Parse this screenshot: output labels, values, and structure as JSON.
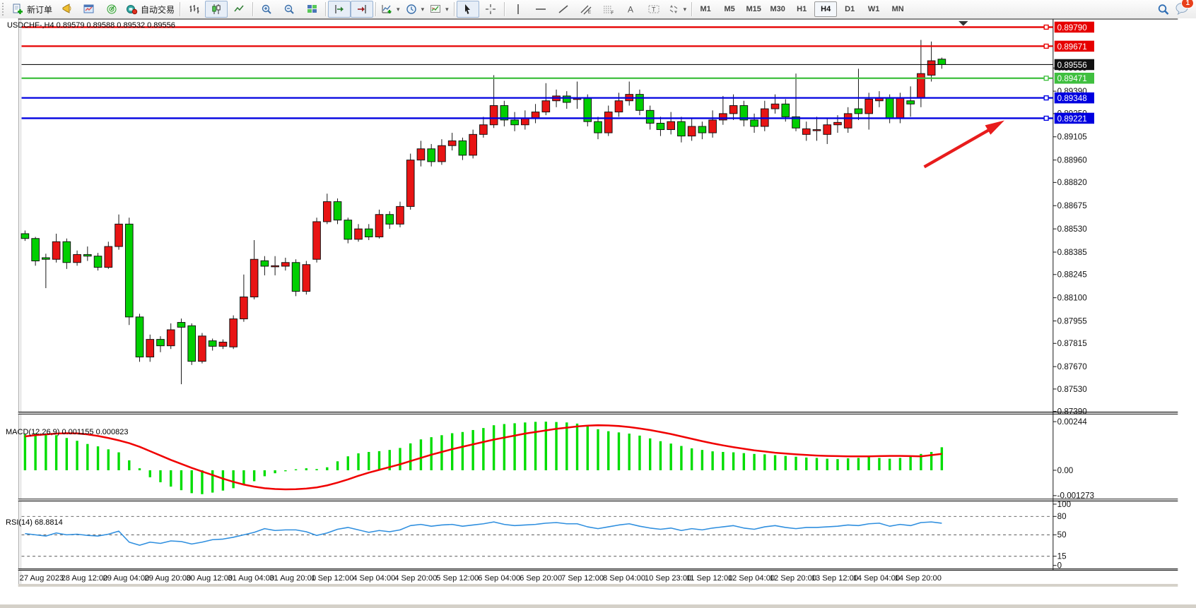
{
  "toolbar": {
    "new_order_label": "新订单",
    "autotrade_label": "自动交易",
    "timeframes": [
      "M1",
      "M5",
      "M15",
      "M30",
      "H1",
      "H4",
      "D1",
      "W1",
      "MN"
    ],
    "active_timeframe": "H4",
    "notification_count": "1"
  },
  "chart_data": {
    "type": "candlestick",
    "symbol": "USDCHF-",
    "period": "H4",
    "title": "USDCHF-,H4  0.89579 0.89588 0.89532 0.89556",
    "quote": {
      "open": "0.89579",
      "high": "0.89588",
      "low": "0.89532",
      "close": "0.89556"
    },
    "colors": {
      "bull": "#e81414",
      "bear": "#00cf00",
      "wick": "#111111",
      "macd_hist": "#00dd00",
      "macd_signal": "#f00000",
      "rsi_line": "#2f8fdf",
      "arrow": "#e81c1c",
      "axis_text": "#111111"
    },
    "levels": [
      {
        "label": "0.89790",
        "price": 0.8979,
        "color": "#e60000",
        "width": 2.4,
        "quote": false
      },
      {
        "label": "0.89671",
        "price": 0.89671,
        "color": "#e60000",
        "width": 2.4,
        "quote": false
      },
      {
        "label": "0.89556",
        "price": 0.89556,
        "color": "#111111",
        "width": 1.2,
        "quote": true
      },
      {
        "label": "0.89471",
        "price": 0.89471,
        "color": "#3fbf3f",
        "width": 2.4,
        "quote": false
      },
      {
        "label": "0.89348",
        "price": 0.89348,
        "color": "#0000e0",
        "width": 2.4,
        "quote": false
      },
      {
        "label": "0.89221",
        "price": 0.89221,
        "color": "#0000e0",
        "width": 2.4,
        "quote": false
      }
    ],
    "price_ticks": [
      "0.89535",
      "0.89390",
      "0.89250",
      "0.89105",
      "0.88960",
      "0.88820",
      "0.88675",
      "0.88530",
      "0.88385",
      "0.88245",
      "0.88100",
      "0.87955",
      "0.87815",
      "0.87670",
      "0.87530",
      "0.87390"
    ],
    "time_labels": [
      "27 Aug 2023",
      "28 Aug 12:00",
      "29 Aug 04:00",
      "29 Aug 20:00",
      "30 Aug 12:00",
      "31 Aug 04:00",
      "31 Aug 20:00",
      "1 Sep 12:00",
      "4 Sep 04:00",
      "4 Sep 20:00",
      "5 Sep 12:00",
      "6 Sep 04:00",
      "6 Sep 20:00",
      "7 Sep 12:00",
      "8 Sep 04:00",
      "10 Sep 23:00",
      "11 Sep 12:00",
      "12 Sep 04:00",
      "12 Sep 20:00",
      "13 Sep 12:00",
      "14 Sep 04:00",
      "14 Sep 20:00"
    ],
    "candles": [
      [
        0.885,
        0.8852,
        0.88455,
        0.8847
      ],
      [
        0.8847,
        0.8848,
        0.883,
        0.8833
      ],
      [
        0.8835,
        0.88375,
        0.8816,
        0.8834
      ],
      [
        0.8834,
        0.885,
        0.8832,
        0.8845
      ],
      [
        0.8845,
        0.8847,
        0.8828,
        0.8832
      ],
      [
        0.8832,
        0.88395,
        0.883,
        0.8837
      ],
      [
        0.8837,
        0.8842,
        0.8833,
        0.8836
      ],
      [
        0.8836,
        0.8838,
        0.8827,
        0.8829
      ],
      [
        0.8829,
        0.8845,
        0.8828,
        0.8842
      ],
      [
        0.8842,
        0.8862,
        0.884,
        0.8856
      ],
      [
        0.8856,
        0.886,
        0.8793,
        0.8798
      ],
      [
        0.8798,
        0.88,
        0.877,
        0.8773
      ],
      [
        0.8773,
        0.8787,
        0.877,
        0.8784
      ],
      [
        0.8784,
        0.8786,
        0.8776,
        0.878
      ],
      [
        0.878,
        0.8794,
        0.8778,
        0.879
      ],
      [
        0.87946,
        0.8797,
        0.8756,
        0.87916
      ],
      [
        0.87925,
        0.8794,
        0.8768,
        0.87703
      ],
      [
        0.87703,
        0.8788,
        0.8769,
        0.87861
      ],
      [
        0.87831,
        0.87845,
        0.8777,
        0.87797
      ],
      [
        0.87797,
        0.8784,
        0.8778,
        0.87823
      ],
      [
        0.87793,
        0.8799,
        0.8778,
        0.87968
      ],
      [
        0.87968,
        0.88245,
        0.8795,
        0.88105
      ],
      [
        0.88105,
        0.8846,
        0.8809,
        0.8834
      ],
      [
        0.88331,
        0.8836,
        0.8824,
        0.88297
      ],
      [
        0.883,
        0.8836,
        0.8824,
        0.883
      ],
      [
        0.88297,
        0.8835,
        0.8827,
        0.8832
      ],
      [
        0.8832,
        0.8834,
        0.8811,
        0.8814
      ],
      [
        0.8814,
        0.8833,
        0.8812,
        0.88307
      ],
      [
        0.8834,
        0.886,
        0.8832,
        0.88575
      ],
      [
        0.88575,
        0.8875,
        0.8856,
        0.887
      ],
      [
        0.887,
        0.8872,
        0.8856,
        0.88585
      ],
      [
        0.88585,
        0.886,
        0.8844,
        0.88465
      ],
      [
        0.88465,
        0.8856,
        0.8845,
        0.8853
      ],
      [
        0.8853,
        0.8856,
        0.8846,
        0.8848
      ],
      [
        0.8848,
        0.8865,
        0.8847,
        0.8862
      ],
      [
        0.8862,
        0.8864,
        0.8853,
        0.8856
      ],
      [
        0.8856,
        0.887,
        0.8854,
        0.8867
      ],
      [
        0.8867,
        0.89,
        0.8865,
        0.8896
      ],
      [
        0.8896,
        0.8908,
        0.8892,
        0.8903
      ],
      [
        0.8903,
        0.8906,
        0.8892,
        0.8895
      ],
      [
        0.8895,
        0.8909,
        0.8893,
        0.8905
      ],
      [
        0.8905,
        0.8913,
        0.8902,
        0.8908
      ],
      [
        0.8908,
        0.891,
        0.8896,
        0.8899
      ],
      [
        0.8899,
        0.8915,
        0.8897,
        0.8912
      ],
      [
        0.8912,
        0.8923,
        0.891,
        0.8918
      ],
      [
        0.8918,
        0.8949,
        0.8916,
        0.893
      ],
      [
        0.893,
        0.8933,
        0.8917,
        0.8921
      ],
      [
        0.8921,
        0.8926,
        0.8914,
        0.8918
      ],
      [
        0.8918,
        0.8927,
        0.8915,
        0.8922
      ],
      [
        0.8922,
        0.8931,
        0.8919,
        0.8926
      ],
      [
        0.8926,
        0.8944,
        0.8924,
        0.8933
      ],
      [
        0.8933,
        0.894,
        0.8929,
        0.8936
      ],
      [
        0.8936,
        0.8939,
        0.8928,
        0.8932
      ],
      [
        0.8934,
        0.8945,
        0.8928,
        0.89345
      ],
      [
        0.89345,
        0.8937,
        0.8917,
        0.892
      ],
      [
        0.892,
        0.8923,
        0.8909,
        0.8913
      ],
      [
        0.8913,
        0.893,
        0.8911,
        0.8926
      ],
      [
        0.8926,
        0.8938,
        0.8923,
        0.8933
      ],
      [
        0.8933,
        0.8945,
        0.893,
        0.8937
      ],
      [
        0.8937,
        0.894,
        0.8924,
        0.8927
      ],
      [
        0.8927,
        0.893,
        0.8915,
        0.8919
      ],
      [
        0.8919,
        0.8923,
        0.8911,
        0.8915
      ],
      [
        0.8915,
        0.8926,
        0.8912,
        0.892
      ],
      [
        0.892,
        0.8923,
        0.8907,
        0.8911
      ],
      [
        0.8911,
        0.8922,
        0.8908,
        0.8917
      ],
      [
        0.8917,
        0.892,
        0.8909,
        0.8913
      ],
      [
        0.8913,
        0.8927,
        0.891,
        0.8921
      ],
      [
        0.8921,
        0.8936,
        0.8918,
        0.8925
      ],
      [
        0.8925,
        0.8937,
        0.8921,
        0.893
      ],
      [
        0.893,
        0.8933,
        0.8917,
        0.8921
      ],
      [
        0.8921,
        0.8925,
        0.8913,
        0.8917
      ],
      [
        0.8917,
        0.8933,
        0.8914,
        0.8928
      ],
      [
        0.8928,
        0.8937,
        0.8925,
        0.8931
      ],
      [
        0.8931,
        0.8934,
        0.892,
        0.8923
      ],
      [
        0.8923,
        0.895,
        0.8914,
        0.8916
      ],
      [
        0.8912,
        0.892,
        0.8908,
        0.89155
      ],
      [
        0.8915,
        0.8923,
        0.8908,
        0.8915
      ],
      [
        0.8912,
        0.8922,
        0.8906,
        0.8918
      ],
      [
        0.8918,
        0.8924,
        0.8913,
        0.89195
      ],
      [
        0.8916,
        0.8929,
        0.8913,
        0.8925
      ],
      [
        0.8928,
        0.8953,
        0.8921,
        0.8925
      ],
      [
        0.8925,
        0.8938,
        0.8915,
        0.8934
      ],
      [
        0.8933,
        0.8939,
        0.8929,
        0.8935
      ],
      [
        0.8935,
        0.8937,
        0.8919,
        0.8922
      ],
      [
        0.8922,
        0.8938,
        0.8919,
        0.8935
      ],
      [
        0.8933,
        0.8942,
        0.8923,
        0.8931
      ],
      [
        0.8935,
        0.8971,
        0.8929,
        0.895
      ],
      [
        0.8949,
        0.897,
        0.8945,
        0.8958
      ],
      [
        0.8959,
        0.896,
        0.8953,
        0.89556
      ]
    ],
    "macd": {
      "label": "MACD(12,26,9) 0.001155 0.000823",
      "ticks": [
        {
          "text": "0.00244",
          "value": 2.44
        },
        {
          "text": "0.00",
          "value": 0
        },
        {
          "text": "-0.001273",
          "value": -1.273
        }
      ],
      "hist": [
        1.8,
        1.85,
        1.82,
        1.76,
        1.62,
        1.48,
        1.32,
        1.2,
        1.05,
        0.9,
        0.5,
        0.1,
        -0.35,
        -0.6,
        -0.82,
        -1.0,
        -1.15,
        -1.2,
        -1.12,
        -1.02,
        -0.9,
        -0.74,
        -0.55,
        -0.3,
        -0.15,
        -0.05,
        0.05,
        0.1,
        0.06,
        0.15,
        0.45,
        0.7,
        0.85,
        0.92,
        0.96,
        1.02,
        1.12,
        1.35,
        1.55,
        1.66,
        1.76,
        1.86,
        1.92,
        2.02,
        2.12,
        2.26,
        2.32,
        2.36,
        2.4,
        2.43,
        2.44,
        2.42,
        2.4,
        2.34,
        2.2,
        2.06,
        1.96,
        1.9,
        1.84,
        1.74,
        1.6,
        1.46,
        1.34,
        1.22,
        1.1,
        1.02,
        0.95,
        0.92,
        0.9,
        0.86,
        0.82,
        0.8,
        0.76,
        0.72,
        0.68,
        0.64,
        0.62,
        0.58,
        0.56,
        0.6,
        0.62,
        0.66,
        0.62,
        0.58,
        0.62,
        0.72,
        0.82,
        0.92,
        1.155
      ],
      "signal": [
        1.7,
        1.76,
        1.8,
        1.84,
        1.86,
        1.85,
        1.8,
        1.72,
        1.62,
        1.5,
        1.36,
        1.18,
        0.96,
        0.74,
        0.52,
        0.32,
        0.12,
        -0.06,
        -0.24,
        -0.42,
        -0.58,
        -0.72,
        -0.82,
        -0.9,
        -0.94,
        -0.96,
        -0.95,
        -0.92,
        -0.86,
        -0.76,
        -0.62,
        -0.46,
        -0.28,
        -0.12,
        0.02,
        0.16,
        0.3,
        0.46,
        0.62,
        0.78,
        0.92,
        1.06,
        1.18,
        1.3,
        1.42,
        1.54,
        1.64,
        1.74,
        1.84,
        1.92,
        2.0,
        2.08,
        2.14,
        2.2,
        2.24,
        2.26,
        2.25,
        2.22,
        2.17,
        2.1,
        2.02,
        1.92,
        1.82,
        1.7,
        1.58,
        1.46,
        1.35,
        1.25,
        1.16,
        1.08,
        1.0,
        0.94,
        0.88,
        0.84,
        0.8,
        0.77,
        0.74,
        0.72,
        0.71,
        0.7,
        0.7,
        0.7,
        0.71,
        0.72,
        0.72,
        0.71,
        0.7,
        0.76,
        0.823
      ]
    },
    "rsi": {
      "label": "RSI(14) 68.8814",
      "ticks": [
        {
          "text": "100",
          "value": 100
        },
        {
          "text": "80",
          "value": 80
        },
        {
          "text": "50",
          "value": 50
        },
        {
          "text": "15",
          "value": 15
        },
        {
          "text": "0",
          "value": 0
        }
      ],
      "dashed_levels": [
        80,
        50,
        15
      ],
      "values": [
        52,
        50,
        48,
        53,
        50,
        51,
        49,
        48,
        51,
        56,
        38,
        33,
        38,
        36,
        40,
        39,
        35,
        38,
        42,
        43,
        46,
        50,
        54,
        60,
        57,
        58,
        58,
        55,
        49,
        53,
        59,
        62,
        58,
        54,
        57,
        55,
        58,
        65,
        67,
        64,
        66,
        67,
        64,
        66,
        68,
        71,
        67,
        65,
        66,
        67,
        69,
        70,
        68,
        68,
        63,
        60,
        63,
        66,
        68,
        64,
        61,
        59,
        61,
        57,
        60,
        58,
        61,
        63,
        65,
        61,
        59,
        63,
        65,
        62,
        60,
        62,
        62,
        63,
        64,
        66,
        65,
        68,
        69,
        64,
        67,
        65,
        70,
        71,
        68.88
      ]
    },
    "annotation": {
      "type": "arrow",
      "direction": "up-right",
      "color": "#e81c1c"
    }
  }
}
